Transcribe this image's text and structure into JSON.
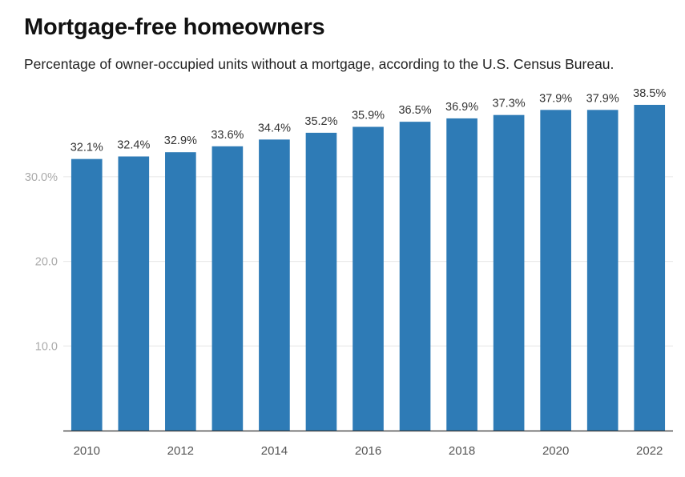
{
  "title": "Mortgage-free homeowners",
  "subtitle": "Percentage of owner-occupied units without a mortgage, according to the U.S. Census Bureau.",
  "colors": {
    "bar": "#2e7bb6",
    "grid": "#e6e6e6",
    "axis": "#333333"
  },
  "chart_data": {
    "type": "bar",
    "title": "Mortgage-free homeowners",
    "subtitle": "Percentage of owner-occupied units without a mortgage, according to the U.S. Census Bureau.",
    "xlabel": "",
    "ylabel": "",
    "categories": [
      "2010",
      "2011",
      "2012",
      "2013",
      "2014",
      "2015",
      "2016",
      "2017",
      "2018",
      "2019",
      "2020",
      "2021",
      "2022"
    ],
    "values": [
      32.1,
      32.4,
      32.9,
      33.6,
      34.4,
      35.2,
      35.9,
      36.5,
      36.9,
      37.3,
      37.9,
      37.9,
      38.5
    ],
    "data_labels": [
      "32.1%",
      "32.4%",
      "32.9%",
      "33.6%",
      "34.4%",
      "35.2%",
      "35.9%",
      "36.5%",
      "36.9%",
      "37.3%",
      "37.9%",
      "37.9%",
      "38.5%"
    ],
    "x_tick_labels": [
      "2010",
      "",
      "2012",
      "",
      "2014",
      "",
      "2016",
      "",
      "2018",
      "",
      "2020",
      "",
      "2022"
    ],
    "y_ticks": [
      10,
      20,
      30
    ],
    "y_tick_labels": [
      "10.0",
      "20.0",
      "30.0%"
    ],
    "ylim": [
      0,
      38.5
    ],
    "grid": true,
    "legend": "none"
  }
}
